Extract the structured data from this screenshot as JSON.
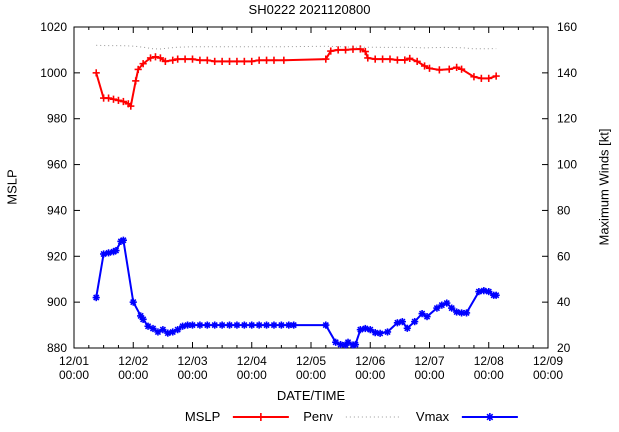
{
  "title": "SH0222 2021120800",
  "chart_data": {
    "type": "line",
    "title": "SH0222 2021120800",
    "xlabel": "DATE/TIME",
    "ylabel_left": "MSLP",
    "ylabel_right": "Maximum Winds [kt]",
    "x_unit": "hours since 12/01 00:00",
    "x_range_hours": [
      0,
      192
    ],
    "x_major_step": 24,
    "x_minor_step": 6,
    "ylim_left": [
      880,
      1020
    ],
    "ylim_right": [
      20,
      160
    ],
    "grid": false,
    "legend_position": "below",
    "x_ticks": [
      {
        "hour": 0,
        "date": "12/01",
        "time": "00:00"
      },
      {
        "hour": 24,
        "date": "12/02",
        "time": "00:00"
      },
      {
        "hour": 48,
        "date": "12/03",
        "time": "00:00"
      },
      {
        "hour": 72,
        "date": "12/04",
        "time": "00:00"
      },
      {
        "hour": 96,
        "date": "12/05",
        "time": "00:00"
      },
      {
        "hour": 120,
        "date": "12/06",
        "time": "00:00"
      },
      {
        "hour": 144,
        "date": "12/07",
        "time": "00:00"
      },
      {
        "hour": 168,
        "date": "12/08",
        "time": "00:00"
      },
      {
        "hour": 192,
        "date": "12/09",
        "time": "00:00"
      }
    ],
    "y_left_ticks": [
      880,
      900,
      920,
      940,
      960,
      980,
      1000,
      1020
    ],
    "y_right_ticks": [
      20,
      40,
      60,
      80,
      100,
      120,
      140,
      160
    ],
    "series": [
      {
        "name": "MSLP",
        "axis": "left",
        "color": "#ff0000",
        "style": "solid",
        "marker": "plus",
        "points": [
          [
            9,
            1000
          ],
          [
            12,
            989
          ],
          [
            14,
            989
          ],
          [
            16,
            988.5
          ],
          [
            18,
            988
          ],
          [
            20,
            987.5
          ],
          [
            22,
            986.5
          ],
          [
            23,
            985.5
          ],
          [
            25,
            996.5
          ],
          [
            26,
            1001.5
          ],
          [
            28,
            1004
          ],
          [
            31,
            1006.5
          ],
          [
            33,
            1007
          ],
          [
            35,
            1006.5
          ],
          [
            37,
            1005
          ],
          [
            40,
            1005.5
          ],
          [
            42,
            1006
          ],
          [
            45,
            1006
          ],
          [
            48,
            1006
          ],
          [
            51,
            1005.5
          ],
          [
            54,
            1005.5
          ],
          [
            57,
            1005
          ],
          [
            60,
            1005
          ],
          [
            63,
            1005
          ],
          [
            66,
            1005
          ],
          [
            69,
            1005
          ],
          [
            72,
            1005
          ],
          [
            75,
            1005.5
          ],
          [
            78,
            1005.5
          ],
          [
            81,
            1005.5
          ],
          [
            85,
            1005.5
          ],
          [
            102,
            1006
          ],
          [
            104,
            1009.5
          ],
          [
            107,
            1010
          ],
          [
            110,
            1010
          ],
          [
            113,
            1010.3
          ],
          [
            116,
            1010.4
          ],
          [
            118,
            1009.3
          ],
          [
            119,
            1006.5
          ],
          [
            122,
            1006
          ],
          [
            125,
            1006
          ],
          [
            128,
            1006
          ],
          [
            131,
            1005.6
          ],
          [
            134,
            1005.6
          ],
          [
            136,
            1006.3
          ],
          [
            139,
            1005
          ],
          [
            142,
            1003
          ],
          [
            144,
            1002
          ],
          [
            148,
            1001.3
          ],
          [
            152,
            1001.6
          ],
          [
            155,
            1002.4
          ],
          [
            157,
            1001.6
          ],
          [
            162,
            998.3
          ],
          [
            165,
            997.6
          ],
          [
            168,
            997.6
          ],
          [
            171,
            998.6
          ]
        ]
      },
      {
        "name": "Penv",
        "axis": "left",
        "color": "#999999",
        "style": "dotted",
        "marker": "none",
        "points": [
          [
            9,
            1012
          ],
          [
            13,
            1011.9
          ],
          [
            17,
            1011.9
          ],
          [
            21,
            1011.8
          ],
          [
            25,
            1011.6
          ],
          [
            29,
            1011
          ],
          [
            32,
            1010.5
          ],
          [
            35,
            1010.4
          ],
          [
            38,
            1010.8
          ],
          [
            42,
            1011.2
          ],
          [
            46,
            1011.3
          ],
          [
            50,
            1011.4
          ],
          [
            54,
            1011.4
          ],
          [
            58,
            1011.4
          ],
          [
            62,
            1011.4
          ],
          [
            66,
            1011.4
          ],
          [
            70,
            1011.4
          ],
          [
            74,
            1011.4
          ],
          [
            78,
            1011.4
          ],
          [
            82,
            1011.4
          ],
          [
            85,
            1011.4
          ],
          [
            102,
            1011.6
          ],
          [
            106,
            1011.5
          ],
          [
            110,
            1011.3
          ],
          [
            114,
            1011.2
          ],
          [
            118,
            1011.2
          ],
          [
            122,
            1011.2
          ],
          [
            126,
            1011.1
          ],
          [
            130,
            1011.1
          ],
          [
            134,
            1011.2
          ],
          [
            138,
            1011
          ],
          [
            142,
            1010.9
          ],
          [
            146,
            1011
          ],
          [
            150,
            1011.1
          ],
          [
            154,
            1011
          ],
          [
            158,
            1010.9
          ],
          [
            162,
            1010.5
          ],
          [
            166,
            1010.5
          ],
          [
            171,
            1010.6
          ]
        ]
      },
      {
        "name": "Vmax",
        "axis": "right",
        "color": "#0000ff",
        "style": "solid",
        "marker": "asterisk",
        "points": [
          [
            9,
            42
          ],
          [
            12,
            61
          ],
          [
            14,
            61.5
          ],
          [
            16,
            62
          ],
          [
            17,
            62.5
          ],
          [
            19,
            66.5
          ],
          [
            20,
            67
          ],
          [
            24,
            40
          ],
          [
            27,
            34
          ],
          [
            28,
            32.5
          ],
          [
            30,
            29.5
          ],
          [
            32,
            28.5
          ],
          [
            34,
            27
          ],
          [
            36,
            28
          ],
          [
            38,
            26.5
          ],
          [
            40,
            27
          ],
          [
            42,
            28
          ],
          [
            44,
            29.5
          ],
          [
            46,
            30
          ],
          [
            48,
            30
          ],
          [
            51,
            30
          ],
          [
            54,
            30
          ],
          [
            57,
            30
          ],
          [
            60,
            30
          ],
          [
            63,
            30
          ],
          [
            66,
            30
          ],
          [
            69,
            30
          ],
          [
            72,
            30
          ],
          [
            75,
            30
          ],
          [
            78,
            30
          ],
          [
            81,
            30
          ],
          [
            84,
            30
          ],
          [
            87,
            30
          ],
          [
            89,
            30
          ],
          [
            102,
            30
          ],
          [
            106,
            22.5
          ],
          [
            108,
            21.5
          ],
          [
            110,
            21.3
          ],
          [
            111,
            22.5
          ],
          [
            113,
            21.3
          ],
          [
            114,
            21.5
          ],
          [
            116,
            28
          ],
          [
            118,
            28.5
          ],
          [
            120,
            28
          ],
          [
            122,
            26.7
          ],
          [
            124,
            26.4
          ],
          [
            127,
            27
          ],
          [
            131,
            31
          ],
          [
            133,
            31.5
          ],
          [
            135,
            28.6
          ],
          [
            138,
            31.5
          ],
          [
            141,
            35
          ],
          [
            143,
            33.7
          ],
          [
            147,
            37.4
          ],
          [
            149,
            38.7
          ],
          [
            151,
            39.6
          ],
          [
            153,
            37.4
          ],
          [
            155,
            35.7
          ],
          [
            157,
            35.3
          ],
          [
            159,
            35.3
          ],
          [
            164,
            44.6
          ],
          [
            166,
            45
          ],
          [
            168,
            44.6
          ],
          [
            170,
            43
          ],
          [
            171,
            43
          ]
        ]
      }
    ]
  }
}
